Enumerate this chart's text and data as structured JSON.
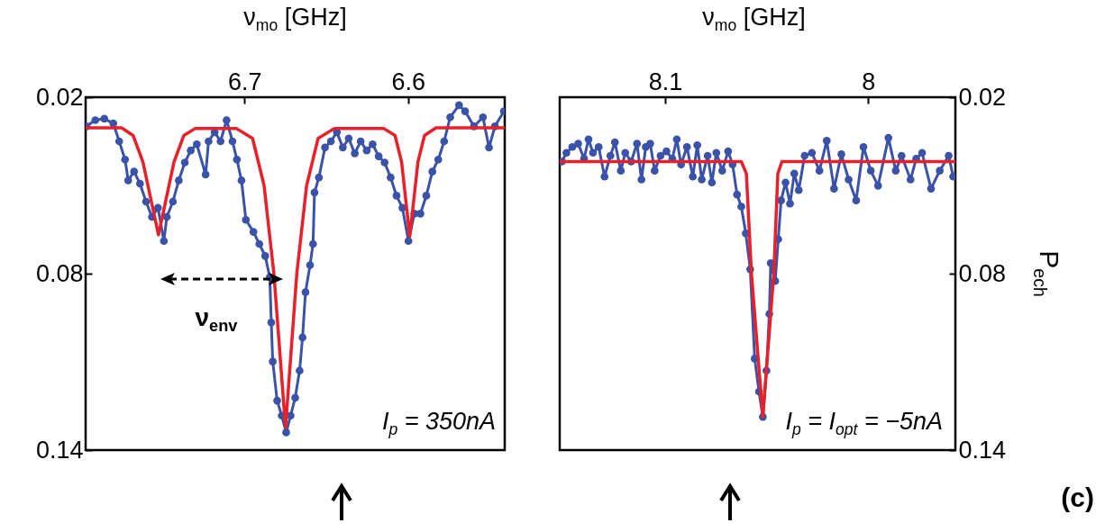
{
  "chart_data": [
    {
      "type": "line",
      "xlabel": "ν$_{mo}$ [GHz]",
      "xlim": [
        6.797,
        6.541
      ],
      "xticks": [
        6.7,
        6.6
      ],
      "ylim": [
        0.14,
        0.02
      ],
      "yticks": [
        0.02,
        0.08,
        0.14
      ],
      "series": [
        {
          "marker": "circle",
          "color": "#3a52a8",
          "x": [
            6.7965,
            6.7911,
            6.7856,
            6.7801,
            6.7765,
            6.7729,
            6.771,
            6.7674,
            6.7638,
            6.7601,
            6.7565,
            6.7528,
            6.7492,
            6.7474,
            6.7437,
            6.7401,
            6.7364,
            6.7328,
            6.7291,
            6.7237,
            6.7219,
            6.7182,
            6.7146,
            6.7109,
            6.7073,
            6.7046,
            6.7018,
            6.6991,
            6.6945,
            6.6909,
            6.6873,
            6.6845,
            6.6836,
            6.6827,
            6.68,
            6.6772,
            6.6745,
            6.6718,
            6.669,
            6.6663,
            6.6645,
            6.6627,
            6.6599,
            6.6581,
            6.6572,
            6.6545,
            6.6508,
            6.6472,
            6.6435,
            6.6399,
            6.6363,
            6.6326,
            6.629,
            6.6253,
            6.6217,
            6.618,
            6.6144,
            6.6107,
            6.6071,
            6.6035,
            6.5998,
            6.5962,
            6.5925,
            6.5889,
            6.5852,
            6.5816,
            6.578,
            6.5743,
            6.5689,
            6.5652,
            6.5598,
            6.5543,
            6.5506,
            6.547,
            6.5415
          ],
          "values": [
            0.0299,
            0.0278,
            0.0273,
            0.0289,
            0.035,
            0.0412,
            0.0483,
            0.0453,
            0.0494,
            0.0555,
            0.0607,
            0.0576,
            0.0689,
            0.0607,
            0.0555,
            0.0483,
            0.0422,
            0.0381,
            0.036,
            0.0463,
            0.035,
            0.0319,
            0.035,
            0.0278,
            0.035,
            0.0412,
            0.0483,
            0.0617,
            0.0658,
            0.0699,
            0.074,
            0.0812,
            0.0966,
            0.1099,
            0.1232,
            0.1283,
            0.134,
            0.1283,
            0.1222,
            0.113,
            0.1017,
            0.0863,
            0.0771,
            0.0699,
            0.0524,
            0.0473,
            0.0371,
            0.035,
            0.0319,
            0.0371,
            0.034,
            0.0391,
            0.035,
            0.0381,
            0.036,
            0.0401,
            0.0422,
            0.0473,
            0.0535,
            0.0576,
            0.0689,
            0.0596,
            0.0596,
            0.0535,
            0.0453,
            0.0412,
            0.035,
            0.0268,
            0.0227,
            0.0248,
            0.0299,
            0.0268,
            0.0371,
            0.0299,
            0.0248
          ]
        },
        {
          "marker": "none",
          "color": "#e8202a",
          "x": [
            6.541,
            6.583,
            6.59,
            6.594,
            6.599,
            6.604,
            6.608,
            6.615,
            6.645,
            6.655,
            6.662,
            6.668,
            6.6749,
            6.682,
            6.688,
            6.695,
            6.705,
            6.73,
            6.737,
            6.743,
            6.7525,
            6.762,
            6.768,
            6.775,
            6.797
          ],
          "values": [
            0.0304,
            0.0304,
            0.033,
            0.042,
            0.0673,
            0.042,
            0.033,
            0.0306,
            0.0306,
            0.034,
            0.05,
            0.08,
            0.1324,
            0.08,
            0.05,
            0.034,
            0.0306,
            0.0306,
            0.033,
            0.042,
            0.0668,
            0.042,
            0.033,
            0.0304,
            0.0304
          ]
        }
      ],
      "annotations": [
        "I$_{p}$ = 350nA",
        "ν$_{env}$"
      ]
    },
    {
      "type": "line",
      "xlabel": "ν$_{mo}$ [GHz]",
      "y2label": "P$_{ech}$",
      "xlim": [
        8.152,
        7.957
      ],
      "xticks": [
        8.1,
        8
      ],
      "y2lim": [
        0.14,
        0.02
      ],
      "y2ticks": [
        0.02,
        0.08,
        0.14
      ],
      "series": [
        {
          "axis": "y2",
          "marker": "circle",
          "color": "#3a52a8",
          "x": [
            8.1509,
            8.1487,
            8.1458,
            8.1429,
            8.14,
            8.1378,
            8.1356,
            8.1328,
            8.1299,
            8.127,
            8.1248,
            8.1219,
            8.1197,
            8.1168,
            8.1139,
            8.1117,
            8.1096,
            8.1074,
            8.1052,
            8.1023,
            8.0994,
            8.0965,
            8.0943,
            8.0922,
            8.0893,
            8.0864,
            8.0842,
            8.082,
            8.0791,
            8.077,
            8.0748,
            8.0719,
            8.069,
            8.0668,
            8.0646,
            8.0625,
            8.0603,
            8.0581,
            8.0559,
            8.0538,
            8.0519,
            8.0501,
            8.0487,
            8.048,
            8.0458,
            8.0443,
            8.0429,
            8.0407,
            8.0385,
            8.0364,
            8.0342,
            8.0313,
            8.0277,
            8.024,
            8.0204,
            8.0168,
            8.0132,
            8.0096,
            8.0059,
            8.0023,
            7.9987,
            7.9951,
            7.99,
            7.9864,
            7.9835,
            7.9791,
            7.9763,
            7.9734,
            7.969,
            7.9647,
            7.9603,
            7.9581
          ],
          "values": [
            0.0419,
            0.0389,
            0.0369,
            0.0358,
            0.0409,
            0.0343,
            0.0389,
            0.0369,
            0.047,
            0.0399,
            0.0353,
            0.045,
            0.0389,
            0.0419,
            0.0358,
            0.048,
            0.0369,
            0.0358,
            0.045,
            0.0399,
            0.0384,
            0.0409,
            0.0343,
            0.0429,
            0.0369,
            0.047,
            0.0363,
            0.048,
            0.0399,
            0.049,
            0.0389,
            0.045,
            0.0384,
            0.0429,
            0.0531,
            0.0572,
            0.0663,
            0.0785,
            0.1089,
            0.1201,
            0.1287,
            0.113,
            0.0937,
            0.0764,
            0.0825,
            0.0683,
            0.0551,
            0.049,
            0.0562,
            0.046,
            0.0516,
            0.0399,
            0.0389,
            0.045,
            0.0348,
            0.0511,
            0.0394,
            0.048,
            0.0551,
            0.0369,
            0.045,
            0.0501,
            0.0338,
            0.045,
            0.0399,
            0.048,
            0.0409,
            0.0389,
            0.0511,
            0.045,
            0.0399,
            0.047
          ]
        },
        {
          "axis": "y2",
          "marker": "none",
          "color": "#e8202a",
          "x": [
            7.957,
            8.0425,
            8.0445,
            8.0465,
            8.0519,
            8.0575,
            8.06,
            8.0625,
            8.152
          ],
          "values": [
            0.0419,
            0.0419,
            0.046,
            0.08,
            0.1287,
            0.08,
            0.046,
            0.0419,
            0.0419
          ]
        }
      ],
      "annotations": [
        "I$_{p}$ = I$_{opt}$ = −5nA",
        "(c)"
      ]
    }
  ]
}
